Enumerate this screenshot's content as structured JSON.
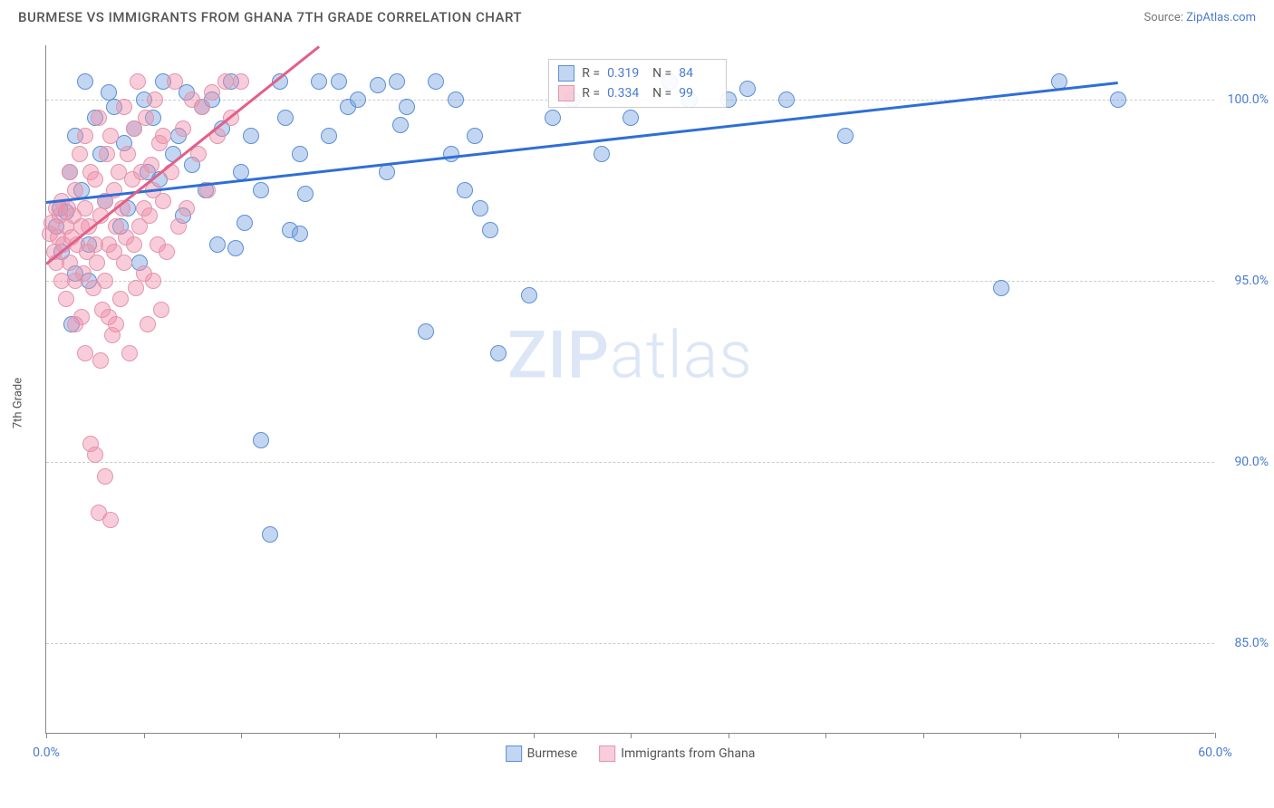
{
  "header": {
    "title": "BURMESE VS IMMIGRANTS FROM GHANA 7TH GRADE CORRELATION CHART",
    "source_prefix": "Source: ",
    "source_link": "ZipAtlas.com"
  },
  "chart": {
    "type": "scatter",
    "ylabel": "7th Grade",
    "xlim": [
      0,
      60
    ],
    "ylim": [
      82.5,
      101.5
    ],
    "x_ticks": [
      0,
      5,
      10,
      15,
      20,
      25,
      30,
      35,
      40,
      45,
      50,
      55,
      60
    ],
    "x_tick_labels": {
      "0": "0.0%",
      "60": "60.0%"
    },
    "y_ticks": [
      85,
      90,
      95,
      100
    ],
    "y_tick_labels": {
      "85": "85.0%",
      "90": "90.0%",
      "95": "95.0%",
      "100": "100.0%"
    },
    "grid_color": "#cccccc",
    "background_color": "#ffffff",
    "point_radius": 9,
    "series": [
      {
        "name": "Burmese",
        "fill_color": "rgba(122,163,224,0.45)",
        "stroke_color": "#5b8fd6",
        "trend_color": "#2e6fd6",
        "trend": {
          "x1": 0,
          "y1": 97.2,
          "x2": 55,
          "y2": 100.5
        },
        "stats": {
          "R": "0.319",
          "N": "84"
        },
        "points": [
          [
            0.5,
            96.5
          ],
          [
            0.7,
            97.0
          ],
          [
            0.8,
            95.8
          ],
          [
            1.0,
            96.9
          ],
          [
            1.2,
            98.0
          ],
          [
            1.3,
            93.8
          ],
          [
            1.5,
            99.0
          ],
          [
            1.5,
            95.2
          ],
          [
            1.8,
            97.5
          ],
          [
            2.0,
            100.5
          ],
          [
            2.2,
            96.0
          ],
          [
            2.5,
            99.5
          ],
          [
            2.2,
            95.0
          ],
          [
            2.8,
            98.5
          ],
          [
            3.0,
            97.2
          ],
          [
            3.2,
            100.2
          ],
          [
            3.5,
            99.8
          ],
          [
            3.8,
            96.5
          ],
          [
            4.0,
            98.8
          ],
          [
            4.2,
            97.0
          ],
          [
            4.5,
            99.2
          ],
          [
            4.8,
            95.5
          ],
          [
            5.0,
            100.0
          ],
          [
            5.2,
            98.0
          ],
          [
            5.5,
            99.5
          ],
          [
            5.8,
            97.8
          ],
          [
            6.0,
            100.5
          ],
          [
            6.5,
            98.5
          ],
          [
            6.8,
            99.0
          ],
          [
            7.0,
            96.8
          ],
          [
            7.2,
            100.2
          ],
          [
            7.5,
            98.2
          ],
          [
            8.0,
            99.8
          ],
          [
            8.2,
            97.5
          ],
          [
            8.5,
            100.0
          ],
          [
            8.8,
            96.0
          ],
          [
            9.0,
            99.2
          ],
          [
            9.5,
            100.5
          ],
          [
            9.7,
            95.9
          ],
          [
            10.0,
            98.0
          ],
          [
            10.2,
            96.6
          ],
          [
            10.5,
            99.0
          ],
          [
            11.0,
            97.5
          ],
          [
            11.0,
            90.6
          ],
          [
            11.5,
            88.0
          ],
          [
            12.0,
            100.5
          ],
          [
            12.3,
            99.5
          ],
          [
            12.5,
            96.4
          ],
          [
            13.0,
            98.5
          ],
          [
            13.0,
            96.3
          ],
          [
            13.3,
            97.4
          ],
          [
            14.0,
            100.5
          ],
          [
            14.5,
            99.0
          ],
          [
            15.0,
            100.5
          ],
          [
            15.5,
            99.8
          ],
          [
            16.0,
            100.0
          ],
          [
            17.0,
            100.4
          ],
          [
            17.5,
            98.0
          ],
          [
            18.0,
            100.5
          ],
          [
            18.2,
            99.3
          ],
          [
            18.5,
            99.8
          ],
          [
            19.5,
            93.6
          ],
          [
            20.0,
            100.5
          ],
          [
            20.8,
            98.5
          ],
          [
            21.0,
            100.0
          ],
          [
            21.5,
            97.5
          ],
          [
            22.0,
            99.0
          ],
          [
            22.3,
            97.0
          ],
          [
            22.8,
            96.4
          ],
          [
            23.2,
            93.0
          ],
          [
            24.8,
            94.6
          ],
          [
            26.0,
            99.5
          ],
          [
            27.0,
            100.0
          ],
          [
            28.5,
            98.5
          ],
          [
            30.0,
            99.5
          ],
          [
            32.0,
            100.5
          ],
          [
            33.0,
            100.0
          ],
          [
            35.0,
            100.0
          ],
          [
            36.0,
            100.3
          ],
          [
            38.0,
            100.0
          ],
          [
            41.0,
            99.0
          ],
          [
            49.0,
            94.8
          ],
          [
            52.0,
            100.5
          ],
          [
            55.0,
            100.0
          ]
        ]
      },
      {
        "name": "Immigrants from Ghana",
        "fill_color": "rgba(240,145,170,0.45)",
        "stroke_color": "#e395ac",
        "trend_color": "#e26088",
        "trend": {
          "x1": 0,
          "y1": 95.5,
          "x2": 14,
          "y2": 101.5
        },
        "stats": {
          "R": "0.334",
          "N": "99"
        },
        "points": [
          [
            0.2,
            96.3
          ],
          [
            0.3,
            96.6
          ],
          [
            0.4,
            95.8
          ],
          [
            0.5,
            97.0
          ],
          [
            0.5,
            95.5
          ],
          [
            0.6,
            96.2
          ],
          [
            0.7,
            96.8
          ],
          [
            0.8,
            95.0
          ],
          [
            0.8,
            97.2
          ],
          [
            0.9,
            96.0
          ],
          [
            1.0,
            96.5
          ],
          [
            1.0,
            94.5
          ],
          [
            1.1,
            97.0
          ],
          [
            1.2,
            95.5
          ],
          [
            1.2,
            98.0
          ],
          [
            1.3,
            96.2
          ],
          [
            1.4,
            96.8
          ],
          [
            1.5,
            95.0
          ],
          [
            1.5,
            97.5
          ],
          [
            1.6,
            96.0
          ],
          [
            1.7,
            98.5
          ],
          [
            1.8,
            94.0
          ],
          [
            1.8,
            96.5
          ],
          [
            1.9,
            95.2
          ],
          [
            2.0,
            97.0
          ],
          [
            2.0,
            99.0
          ],
          [
            2.1,
            95.8
          ],
          [
            2.2,
            96.5
          ],
          [
            2.3,
            98.0
          ],
          [
            2.4,
            94.8
          ],
          [
            2.5,
            96.0
          ],
          [
            2.5,
            97.8
          ],
          [
            2.6,
            95.5
          ],
          [
            2.7,
            99.5
          ],
          [
            2.8,
            96.8
          ],
          [
            2.9,
            94.2
          ],
          [
            3.0,
            97.2
          ],
          [
            3.0,
            95.0
          ],
          [
            3.1,
            98.5
          ],
          [
            3.2,
            96.0
          ],
          [
            3.3,
            99.0
          ],
          [
            3.4,
            93.5
          ],
          [
            3.5,
            97.5
          ],
          [
            3.5,
            95.8
          ],
          [
            3.6,
            96.5
          ],
          [
            3.7,
            98.0
          ],
          [
            3.8,
            94.5
          ],
          [
            3.9,
            97.0
          ],
          [
            4.0,
            99.8
          ],
          [
            4.0,
            95.5
          ],
          [
            4.1,
            96.2
          ],
          [
            4.2,
            98.5
          ],
          [
            4.3,
            93.0
          ],
          [
            4.4,
            97.8
          ],
          [
            4.5,
            96.0
          ],
          [
            4.5,
            99.2
          ],
          [
            4.6,
            94.8
          ],
          [
            4.7,
            100.5
          ],
          [
            4.8,
            96.5
          ],
          [
            4.9,
            98.0
          ],
          [
            5.0,
            95.2
          ],
          [
            5.0,
            97.0
          ],
          [
            5.1,
            99.5
          ],
          [
            5.2,
            93.8
          ],
          [
            2.3,
            90.5
          ],
          [
            2.5,
            90.2
          ],
          [
            3.0,
            89.6
          ],
          [
            2.7,
            88.6
          ],
          [
            3.3,
            88.4
          ],
          [
            2.0,
            93.0
          ],
          [
            2.8,
            92.8
          ],
          [
            3.2,
            94.0
          ],
          [
            1.5,
            93.8
          ],
          [
            3.6,
            93.8
          ],
          [
            5.3,
            96.8
          ],
          [
            5.4,
            98.2
          ],
          [
            5.5,
            95.0
          ],
          [
            5.5,
            97.5
          ],
          [
            5.6,
            100.0
          ],
          [
            5.7,
            96.0
          ],
          [
            5.8,
            98.8
          ],
          [
            5.9,
            94.2
          ],
          [
            6.0,
            97.2
          ],
          [
            6.0,
            99.0
          ],
          [
            6.2,
            95.8
          ],
          [
            6.4,
            98.0
          ],
          [
            6.6,
            100.5
          ],
          [
            6.8,
            96.5
          ],
          [
            7.0,
            99.2
          ],
          [
            7.2,
            97.0
          ],
          [
            7.5,
            100.0
          ],
          [
            7.8,
            98.5
          ],
          [
            8.0,
            99.8
          ],
          [
            8.3,
            97.5
          ],
          [
            8.5,
            100.2
          ],
          [
            8.8,
            99.0
          ],
          [
            9.2,
            100.5
          ],
          [
            9.5,
            99.5
          ],
          [
            10.0,
            100.5
          ]
        ]
      }
    ],
    "stats_box": {
      "left_pct": 43,
      "top_pct": 2
    },
    "watermark": "ZIPatlas"
  },
  "legend": {
    "series1": "Burmese",
    "series2": "Immigrants from Ghana"
  }
}
